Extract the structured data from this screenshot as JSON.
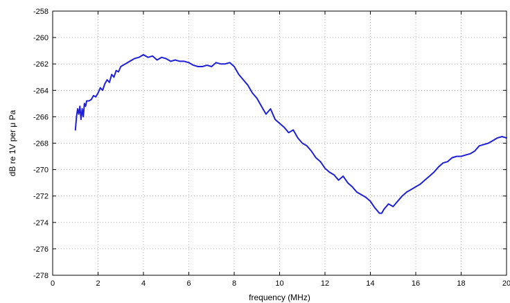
{
  "chart_data": {
    "type": "line",
    "title": "",
    "xlabel": "frequency (MHz)",
    "ylabel": "dB re 1V per μ Pa",
    "xlim": [
      0,
      20
    ],
    "ylim": [
      -278,
      -258
    ],
    "xticks": [
      0,
      2,
      4,
      6,
      8,
      10,
      12,
      14,
      16,
      18,
      20
    ],
    "yticks": [
      -278,
      -276,
      -274,
      -272,
      -270,
      -268,
      -266,
      -264,
      -262,
      -260,
      -258
    ],
    "grid": true,
    "line_color": "#1f1fd6",
    "series": [
      {
        "x": [
          1.0,
          1.05,
          1.1,
          1.15,
          1.2,
          1.25,
          1.3,
          1.35,
          1.4,
          1.45,
          1.5,
          1.6,
          1.7,
          1.8,
          1.9,
          2.0,
          2.1,
          2.2,
          2.3,
          2.4,
          2.5,
          2.6,
          2.7,
          2.8,
          2.9,
          3.0,
          3.2,
          3.4,
          3.6,
          3.8,
          4.0,
          4.2,
          4.4,
          4.6,
          4.8,
          5.0,
          5.2,
          5.4,
          5.6,
          5.8,
          6.0,
          6.2,
          6.4,
          6.6,
          6.8,
          7.0,
          7.2,
          7.4,
          7.6,
          7.8,
          8.0,
          8.2,
          8.4,
          8.6,
          8.8,
          9.0,
          9.2,
          9.4,
          9.6,
          9.8,
          10.0,
          10.2,
          10.4,
          10.6,
          10.8,
          11.0,
          11.2,
          11.4,
          11.6,
          11.8,
          12.0,
          12.2,
          12.4,
          12.6,
          12.8,
          13.0,
          13.2,
          13.4,
          13.6,
          13.8,
          14.0,
          14.2,
          14.4,
          14.5,
          14.6,
          14.8,
          15.0,
          15.2,
          15.4,
          15.6,
          15.8,
          16.0,
          16.2,
          16.4,
          16.6,
          16.8,
          17.0,
          17.2,
          17.4,
          17.6,
          17.8,
          18.0,
          18.2,
          18.4,
          18.6,
          18.8,
          19.0,
          19.2,
          19.4,
          19.6,
          19.8,
          20.0
        ],
        "y": [
          -267.0,
          -266.0,
          -265.4,
          -265.8,
          -265.2,
          -266.2,
          -265.4,
          -266.0,
          -265.0,
          -265.2,
          -264.8,
          -264.8,
          -264.7,
          -264.4,
          -264.5,
          -264.2,
          -263.8,
          -264.0,
          -263.5,
          -263.2,
          -263.4,
          -262.8,
          -263.0,
          -262.5,
          -262.6,
          -262.2,
          -262.0,
          -261.8,
          -261.6,
          -261.5,
          -261.3,
          -261.5,
          -261.4,
          -261.7,
          -261.5,
          -261.6,
          -261.8,
          -261.7,
          -261.8,
          -261.8,
          -261.9,
          -262.1,
          -262.2,
          -262.2,
          -262.1,
          -262.2,
          -261.9,
          -262.0,
          -262.0,
          -261.9,
          -262.2,
          -262.8,
          -263.2,
          -263.6,
          -264.2,
          -264.6,
          -265.2,
          -265.8,
          -265.4,
          -266.2,
          -266.5,
          -266.8,
          -267.2,
          -267.0,
          -267.6,
          -268.0,
          -268.2,
          -268.6,
          -269.1,
          -269.4,
          -269.9,
          -270.2,
          -270.4,
          -270.8,
          -270.5,
          -271.0,
          -271.3,
          -271.7,
          -271.9,
          -272.1,
          -272.4,
          -272.9,
          -273.3,
          -273.3,
          -273.0,
          -272.6,
          -272.8,
          -272.4,
          -272.0,
          -271.7,
          -271.5,
          -271.3,
          -271.1,
          -270.8,
          -270.5,
          -270.2,
          -269.8,
          -269.5,
          -269.4,
          -269.1,
          -269.0,
          -269.0,
          -268.9,
          -268.8,
          -268.6,
          -268.2,
          -268.1,
          -268.0,
          -267.8,
          -267.6,
          -267.5,
          -267.6
        ]
      }
    ]
  }
}
